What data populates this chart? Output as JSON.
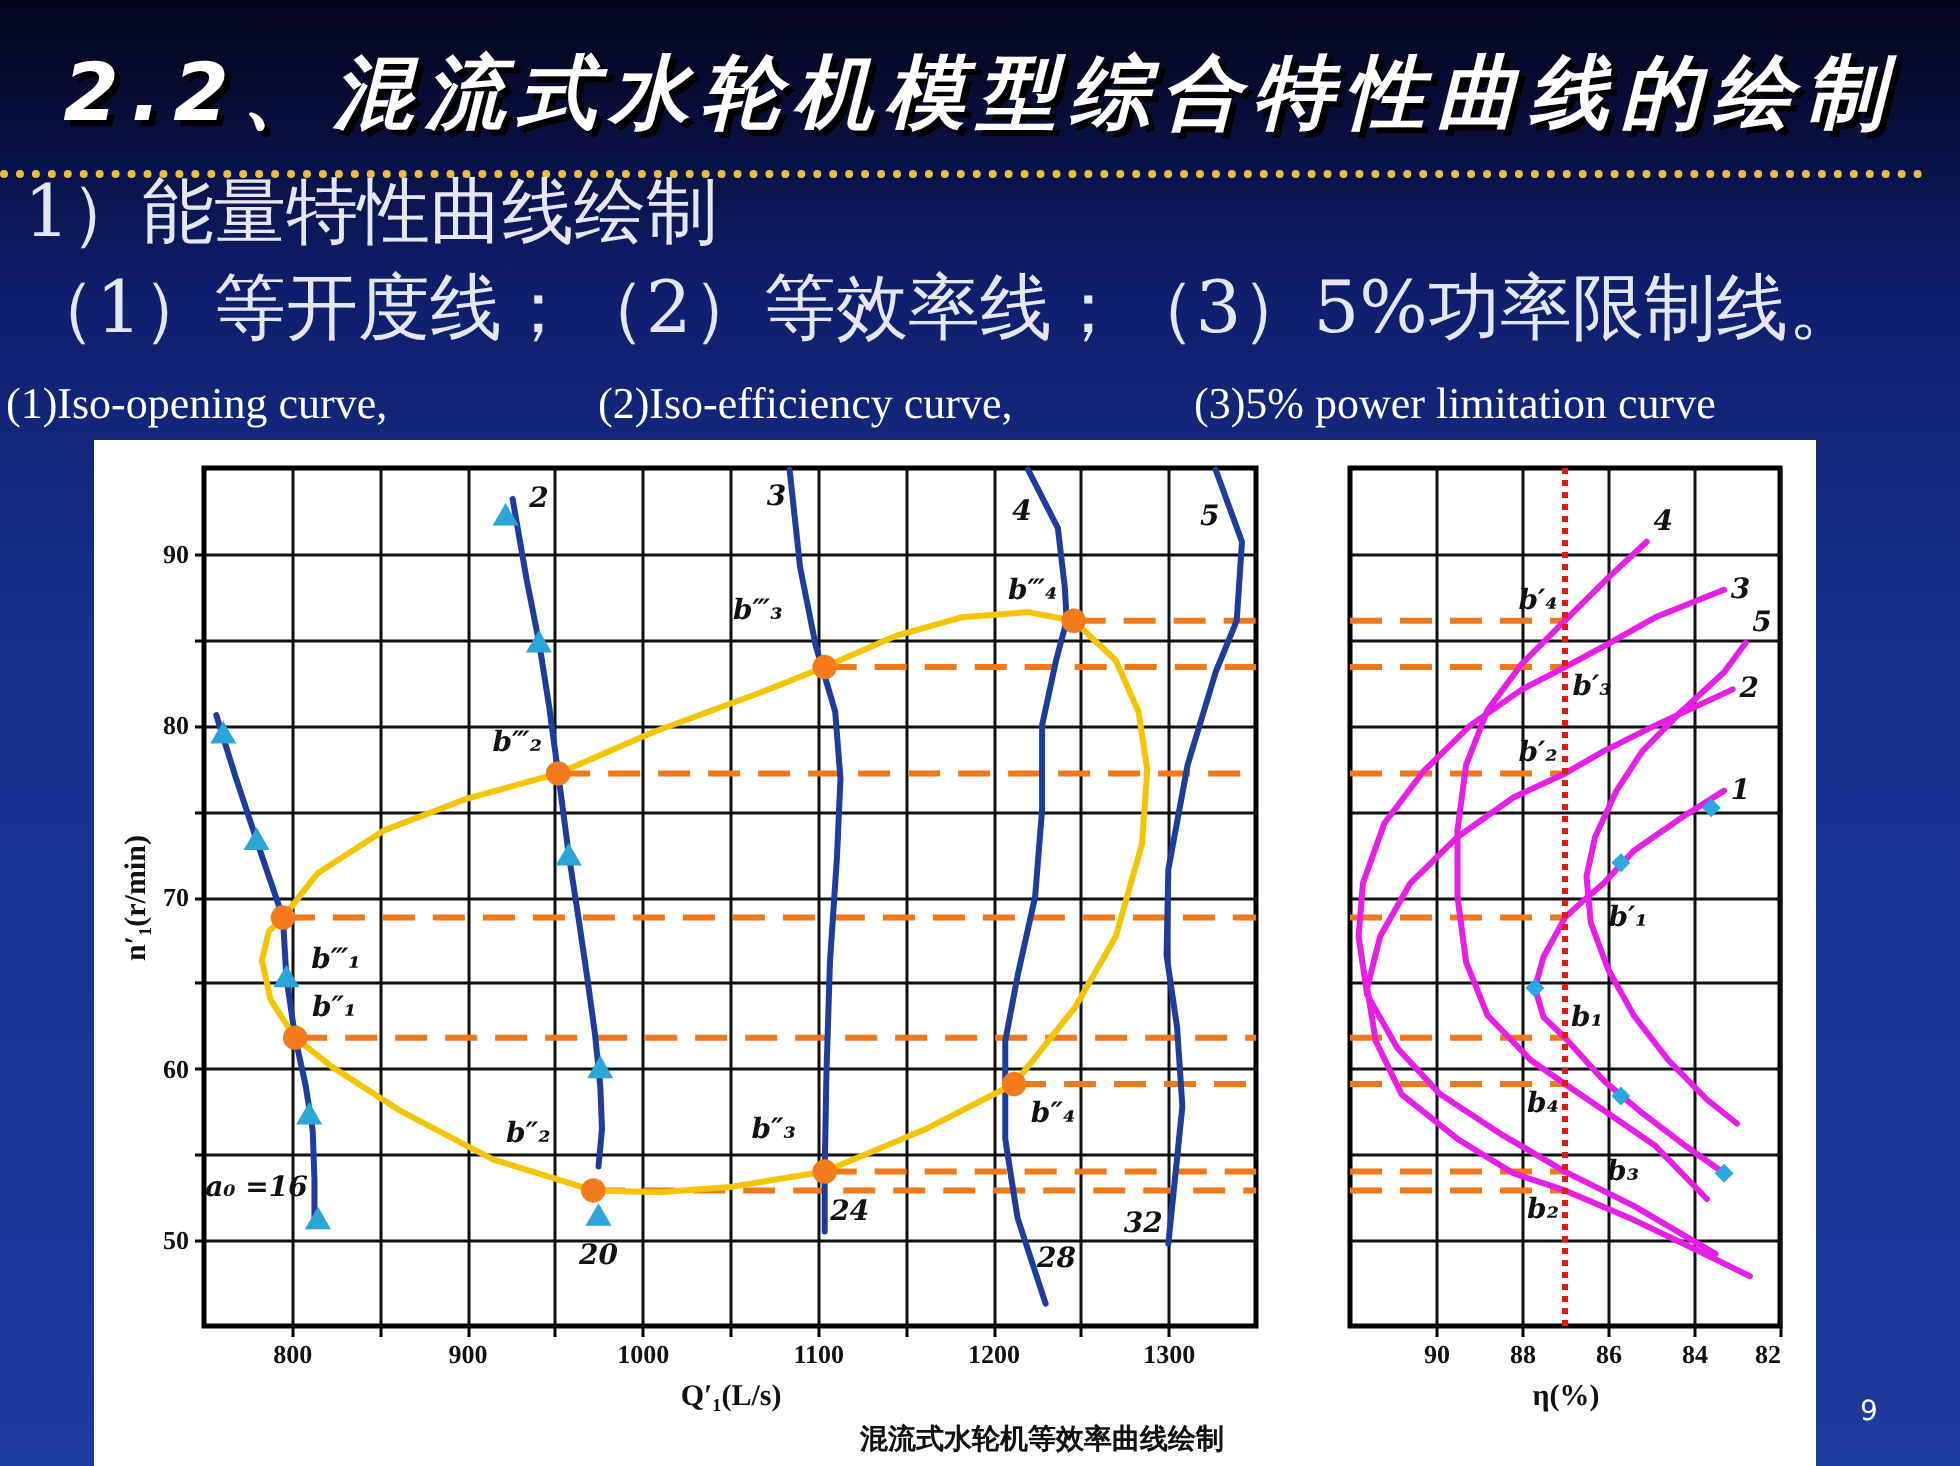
{
  "chart_data": [
    {
      "type": "line",
      "title": "2.2、混流式水轮机模型综合特性曲线的绘制",
      "subtitle": "1）能量特性曲线绘制",
      "xlabel": "Q′₁(L/s)",
      "ylabel": "n′₁(r/min)",
      "xlim": [
        750,
        1350
      ],
      "xticks": [
        800,
        {
          "value": 850,
          "label": null
        },
        900,
        {
          "value": 950,
          "label": null
        },
        1000,
        {
          "value": 1050,
          "label": null
        },
        1100,
        {
          "value": 1150,
          "label": null
        },
        1200,
        {
          "value": 1250,
          "label": null
        },
        1300
      ],
      "ylim": [
        45,
        95
      ],
      "yticks": [
        50,
        {
          "value": 55,
          "label": null
        },
        60,
        {
          "value": 65,
          "label": null
        },
        70,
        {
          "value": 75,
          "label": null
        },
        80,
        {
          "value": 85,
          "label": null
        },
        90
      ],
      "grid": true,
      "series": [
        {
          "x": [
            1246,
            1350
          ],
          "values": [
            86.1,
            86.1
          ],
          "color": "#f07818",
          "line_style": "dashed"
        },
        {
          "x": [
            1104,
            1350
          ],
          "values": [
            83.4,
            83.4
          ],
          "color": "#f07818",
          "line_style": "dashed"
        },
        {
          "x": [
            952,
            1350
          ],
          "values": [
            77.2,
            77.2
          ],
          "color": "#f07818",
          "line_style": "dashed"
        },
        {
          "x": [
            795,
            1350
          ],
          "values": [
            68.8,
            68.8
          ],
          "color": "#f07818",
          "line_style": "dashed"
        },
        {
          "x": [
            802,
            1350
          ],
          "values": [
            61.8,
            61.8
          ],
          "color": "#f07818",
          "line_style": "dashed"
        },
        {
          "x": [
            1212,
            1350
          ],
          "values": [
            59.1,
            59.1
          ],
          "color": "#f07818",
          "line_style": "dashed"
        },
        {
          "x": [
            1104,
            1350
          ],
          "values": [
            54.0,
            54.0
          ],
          "color": "#f07818",
          "line_style": "dashed"
        },
        {
          "x": [
            972,
            1350
          ],
          "values": [
            52.9,
            52.9
          ],
          "color": "#f07818",
          "line_style": "dashed"
        },
        {
          "x": [
            757,
            768,
            781,
            795,
            797,
            802,
            808,
            812,
            813,
            813
          ],
          "values": [
            80.6,
            77.0,
            73.0,
            68.8,
            65.3,
            61.8,
            59.0,
            56.4,
            53.5,
            51.3
          ],
          "color": "#1e3c9e"
        },
        {
          "x": [
            926,
            934,
            941,
            947,
            952,
            958,
            964,
            969,
            973,
            976,
            977,
            975
          ],
          "values": [
            93.2,
            88.5,
            84.9,
            81.0,
            77.2,
            72.5,
            68.5,
            65.0,
            62.0,
            59.0,
            56.5,
            54.3
          ],
          "color": "#1e3c9e"
        },
        {
          "x": [
            1084,
            1090,
            1099,
            1110,
            1113,
            1111,
            1107,
            1105,
            1104,
            1104
          ],
          "values": [
            94.9,
            89.2,
            84.6,
            80.8,
            76.9,
            72.3,
            66.2,
            59.7,
            54.0,
            50.5
          ],
          "color": "#1e3c9e"
        },
        {
          "x": [
            1220,
            1237,
            1241,
            1242,
            1236,
            1228,
            1228,
            1224,
            1214,
            1207,
            1207,
            1214,
            1230
          ],
          "values": [
            94.9,
            91.5,
            88.0,
            86.1,
            83.8,
            80.0,
            75.1,
            70.0,
            65.4,
            61.6,
            55.9,
            51.3,
            46.3
          ],
          "color": "#1e3c9e"
        },
        {
          "x": [
            1327,
            1342,
            1339,
            1327,
            1311,
            1300,
            1299,
            1305,
            1308,
            1300
          ],
          "values": [
            94.9,
            90.7,
            86.1,
            83.1,
            77.7,
            71.6,
            66.6,
            62.4,
            57.8,
            49.8
          ],
          "color": "#1e3c9e"
        },
        {
          "x": [
            783,
            787,
            795,
            815,
            853,
            899,
            952,
            1006,
            1067,
            1104,
            1144,
            1182,
            1220,
            1246,
            1270,
            1283,
            1288
          ],
          "values": [
            66.3,
            68.0,
            68.8,
            71.4,
            73.9,
            75.7,
            77.2,
            79.6,
            81.9,
            83.4,
            85.2,
            86.3,
            86.6,
            86.1,
            83.8,
            80.8,
            77.4
          ],
          "color": "#f5c400"
        },
        {
          "x": [
            783,
            788,
            802,
            823,
            861,
            915,
            972,
            1010,
            1050,
            1104,
            1162,
            1212,
            1247,
            1270,
            1285,
            1288
          ],
          "values": [
            66.3,
            64.0,
            61.8,
            60.1,
            57.6,
            54.7,
            52.9,
            52.8,
            53.1,
            54.0,
            56.5,
            59.1,
            63.6,
            67.7,
            73.1,
            77.4
          ],
          "color": "#f5c400"
        },
        {
          "type": "scatter",
          "marker": "triangle",
          "x": [
            761,
            780,
            797,
            810,
            815,
            922,
            941,
            958,
            976,
            975
          ],
          "values": [
            79.6,
            73.4,
            65.4,
            57.4,
            51.3,
            92.3,
            84.9,
            72.5,
            60.1,
            51.5
          ],
          "color": "#2ba5d8"
        },
        {
          "type": "scatter",
          "marker": "circle",
          "x": [
            795,
            802,
            952,
            972,
            1104,
            1104,
            1246,
            1212
          ],
          "values": [
            68.8,
            61.8,
            77.2,
            52.9,
            83.4,
            54.0,
            86.1,
            59.1
          ],
          "color": "#f47a1c"
        }
      ],
      "annotations": [
        "（1）等开度线；（2）等效率线；（3）5%功率限制线。",
        "(1)Iso-opening curve,",
        "(2)Iso-efficiency curve,",
        "(3)5% power limitation curve",
        "混流式水轮机等效率曲线绘制",
        "9",
        {
          "text": "a₀ =16",
          "x": 815,
          "y": 51.3
        },
        {
          "text": "20",
          "x": 975,
          "y": 51.5
        },
        {
          "text": "24",
          "x": 1104,
          "y": 50.5
        },
        {
          "text": "28",
          "x": 1222,
          "y": 48.9
        },
        {
          "text": "32",
          "x": 1300,
          "y": 49.8
        },
        {
          "text": "2",
          "x": 926,
          "y": 93.2
        },
        {
          "text": "3",
          "x": 1086,
          "y": 93.3
        },
        {
          "text": "4",
          "x": 1226,
          "y": 93.6
        },
        {
          "text": "5",
          "x": 1333,
          "y": 93.3
        },
        {
          "text": "b‴₁",
          "x": 795,
          "y": 68.8
        },
        {
          "text": "b″₁",
          "x": 802,
          "y": 61.8
        },
        {
          "text": "b‴₂",
          "x": 952,
          "y": 77.2
        },
        {
          "text": "b″₂",
          "x": 972,
          "y": 52.9
        },
        {
          "text": "b‴₃",
          "x": 1104,
          "y": 83.4
        },
        {
          "text": "b″₃",
          "x": 1104,
          "y": 54.0
        },
        {
          "text": "b‴₄",
          "x": 1246,
          "y": 86.1
        },
        {
          "text": "b″₄",
          "x": 1212,
          "y": 59.1
        }
      ]
    },
    {
      "type": "line",
      "xlabel": "η(%)",
      "xlim": [
        92,
        82
      ],
      "xticks": [
        90,
        88,
        86,
        84,
        82
      ],
      "ylim": [
        45,
        95
      ],
      "yticks": [
        50,
        {
          "value": 55,
          "label": null
        },
        60,
        {
          "value": 65,
          "label": null
        },
        70,
        {
          "value": 75,
          "label": null
        },
        80,
        {
          "value": 85,
          "label": null
        },
        90
      ],
      "tick_labels": "x",
      "grid": true,
      "series": [
        {
          "x": [
            92,
            87
          ],
          "values": [
            86.1,
            86.1
          ],
          "color": "#f07818",
          "line_style": "dashed"
        },
        {
          "x": [
            92,
            87
          ],
          "values": [
            83.4,
            83.4
          ],
          "color": "#f07818",
          "line_style": "dashed"
        },
        {
          "x": [
            92,
            87
          ],
          "values": [
            77.2,
            77.2
          ],
          "color": "#f07818",
          "line_style": "dashed"
        },
        {
          "x": [
            92,
            87
          ],
          "values": [
            68.8,
            68.8
          ],
          "color": "#f07818",
          "line_style": "dashed"
        },
        {
          "x": [
            92,
            87
          ],
          "values": [
            61.8,
            61.8
          ],
          "color": "#f07818",
          "line_style": "dashed"
        },
        {
          "x": [
            92,
            87
          ],
          "values": [
            59.1,
            59.1
          ],
          "color": "#f07818",
          "line_style": "dashed"
        },
        {
          "x": [
            92,
            87
          ],
          "values": [
            54.0,
            54.0
          ],
          "color": "#f07818",
          "line_style": "dashed"
        },
        {
          "x": [
            92,
            87
          ],
          "values": [
            52.9,
            52.9
          ],
          "color": "#f07818",
          "line_style": "dashed"
        },
        {
          "x": [
            83.3,
            84.3,
            85.4,
            86.1,
            86.7,
            87.0,
            87.5,
            87.7,
            87.5,
            87.0,
            86.1,
            85.2,
            84.2,
            83.3
          ],
          "values": [
            76.2,
            74.6,
            72.7,
            70.8,
            69.5,
            68.8,
            66.5,
            64.7,
            63.0,
            61.8,
            59.3,
            57.4,
            55.5,
            53.9
          ],
          "color": "#e61ee6"
        },
        {
          "x": [
            83.1,
            84.9,
            86.1,
            87.0,
            88.2,
            89.5,
            90.6,
            91.3,
            91.6,
            91.4,
            90.8,
            89.5,
            88.2,
            87.0,
            85.5,
            84.0,
            82.7
          ],
          "values": [
            82.1,
            80.0,
            78.5,
            77.2,
            75.8,
            73.5,
            70.8,
            67.7,
            64.7,
            61.6,
            58.5,
            55.9,
            53.9,
            52.9,
            51.3,
            49.5,
            47.9
          ],
          "color": "#e61ee6"
        },
        {
          "x": [
            83.3,
            84.9,
            86.1,
            87.0,
            88.0,
            89.2,
            90.3,
            91.2,
            91.7,
            91.8,
            91.6,
            90.9,
            89.9,
            88.5,
            87.0,
            85.4,
            83.5
          ],
          "values": [
            87.9,
            86.3,
            84.6,
            83.4,
            82.1,
            80.0,
            77.3,
            74.3,
            70.8,
            67.7,
            64.3,
            61.2,
            58.5,
            56.2,
            54.0,
            52.0,
            49.2
          ],
          "color": "#e61ee6"
        },
        {
          "x": [
            85.1,
            86.0,
            87.0,
            88.0,
            88.8,
            89.3,
            89.5,
            89.5,
            89.3,
            88.8,
            87.8,
            87.0,
            86.0,
            84.9,
            83.7
          ],
          "values": [
            90.7,
            88.6,
            86.1,
            83.6,
            80.9,
            77.7,
            73.9,
            70.0,
            66.2,
            63.1,
            60.5,
            59.1,
            57.4,
            55.5,
            52.4
          ],
          "color": "#e61ee6"
        },
        {
          "x": [
            82.8,
            83.3,
            84.3,
            85.2,
            85.8,
            86.3,
            86.5,
            86.4,
            86.0,
            85.4,
            84.6,
            83.7,
            83.0
          ],
          "values": [
            84.8,
            83.1,
            80.8,
            78.5,
            76.2,
            73.5,
            71.2,
            68.5,
            65.8,
            63.1,
            60.5,
            58.2,
            56.8
          ],
          "color": "#e61ee6"
        },
        {
          "type": "scatter",
          "marker": "diamond",
          "x": [
            83.6,
            85.7,
            87.7,
            85.7,
            83.3
          ],
          "values": [
            75.2,
            72.0,
            64.7,
            58.4,
            53.9
          ],
          "color": "#2aa8e0"
        }
      ],
      "ref_lines": [
        {
          "axis": "x",
          "value": 87,
          "color": "#e01818",
          "line_style": "dotted"
        }
      ],
      "annotations": [
        {
          "text": "b′₄",
          "x": 87,
          "y": 86.1
        },
        {
          "text": "b′₃",
          "x": 87,
          "y": 83.4
        },
        {
          "text": "b′₂",
          "x": 87,
          "y": 77.2
        },
        {
          "text": "b′₁",
          "x": 87,
          "y": 68.8
        },
        {
          "text": "b₁",
          "x": 87,
          "y": 61.8
        },
        {
          "text": "b₄",
          "x": 87,
          "y": 59.1
        },
        {
          "text": "b₃",
          "x": 87,
          "y": 54.0
        },
        {
          "text": "b₂",
          "x": 87,
          "y": 52.9
        },
        {
          "text": "4",
          "x": 85.1,
          "y": 90.7
        },
        {
          "text": "3",
          "x": 83.3,
          "y": 87.9
        },
        {
          "text": "5",
          "x": 82.8,
          "y": 84.8
        },
        {
          "text": "2",
          "x": 83.1,
          "y": 82.1
        },
        {
          "text": "1",
          "x": 83.3,
          "y": 76.2
        }
      ]
    }
  ]
}
